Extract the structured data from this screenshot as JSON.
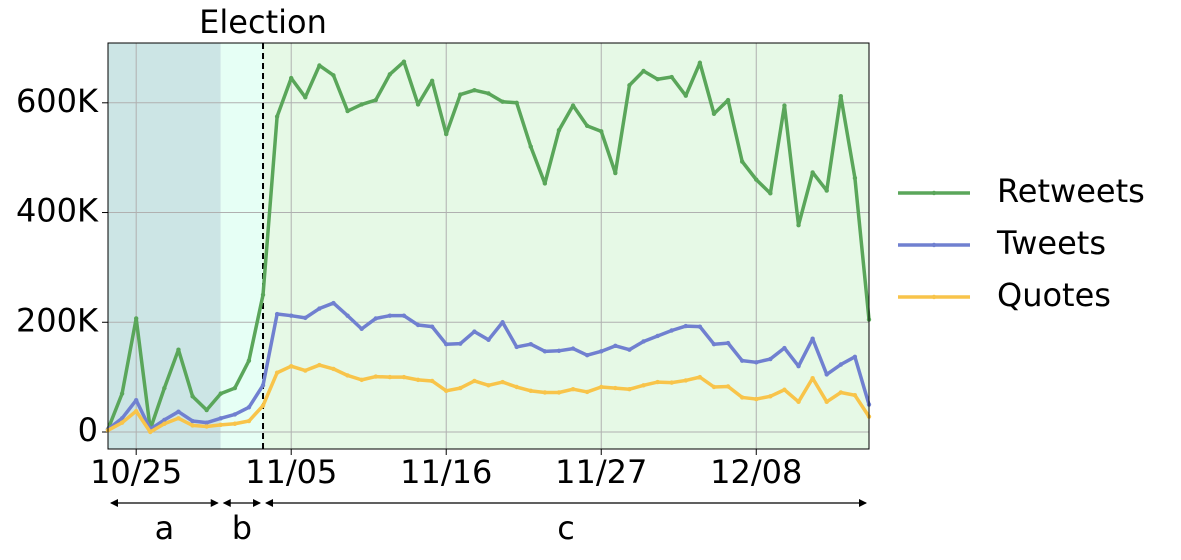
{
  "chart_data": {
    "type": "line",
    "x": [
      "10/23",
      "10/24",
      "10/25",
      "10/26",
      "10/27",
      "10/28",
      "10/29",
      "10/30",
      "10/31",
      "11/01",
      "11/02",
      "11/03",
      "11/04",
      "11/05",
      "11/06",
      "11/07",
      "11/08",
      "11/09",
      "11/10",
      "11/11",
      "11/12",
      "11/13",
      "11/14",
      "11/15",
      "11/16",
      "11/17",
      "11/18",
      "11/19",
      "11/20",
      "11/21",
      "11/22",
      "11/23",
      "11/24",
      "11/25",
      "11/26",
      "11/27",
      "11/28",
      "11/29",
      "11/30",
      "12/01",
      "12/02",
      "12/03",
      "12/04",
      "12/05",
      "12/06",
      "12/07",
      "12/08",
      "12/09",
      "12/10",
      "12/11",
      "12/12",
      "12/13",
      "12/14",
      "12/15",
      "12/16"
    ],
    "series": [
      {
        "name": "Retweets",
        "color": "#5aa65a",
        "values": [
          5000,
          70000,
          207000,
          5000,
          80000,
          150000,
          65000,
          40000,
          70000,
          80000,
          130000,
          250000,
          575000,
          645000,
          610000,
          668000,
          650000,
          585000,
          597000,
          605000,
          652000,
          675000,
          597000,
          640000,
          543000,
          615000,
          623000,
          617000,
          602000,
          600000,
          520000,
          453000,
          550000,
          595000,
          558000,
          548000,
          472000,
          632000,
          658000,
          643000,
          647000,
          613000,
          673000,
          580000,
          605000,
          493000,
          460000,
          435000,
          595000,
          377000,
          473000,
          440000,
          612000,
          463000,
          205000
        ]
      },
      {
        "name": "Tweets",
        "color": "#7080d0",
        "values": [
          5000,
          25000,
          58000,
          5000,
          22000,
          37000,
          20000,
          17000,
          25000,
          32000,
          45000,
          85000,
          215000,
          212000,
          208000,
          225000,
          235000,
          212000,
          188000,
          207000,
          212000,
          212000,
          195000,
          192000,
          160000,
          161000,
          183000,
          168000,
          200000,
          155000,
          160000,
          147000,
          148000,
          152000,
          140000,
          147000,
          157000,
          150000,
          165000,
          175000,
          185000,
          193000,
          192000,
          160000,
          162000,
          130000,
          127000,
          133000,
          153000,
          120000,
          170000,
          105000,
          123000,
          137000,
          50000
        ]
      },
      {
        "name": "Quotes",
        "color": "#f8c44a",
        "values": [
          3000,
          17000,
          38000,
          0,
          15000,
          25000,
          12000,
          10000,
          13000,
          15000,
          20000,
          48000,
          108000,
          120000,
          112000,
          122000,
          115000,
          103000,
          95000,
          101000,
          100000,
          100000,
          95000,
          93000,
          75000,
          80000,
          93000,
          85000,
          91000,
          82000,
          75000,
          72000,
          72000,
          78000,
          73000,
          82000,
          80000,
          78000,
          85000,
          91000,
          90000,
          94000,
          100000,
          82000,
          83000,
          63000,
          60000,
          65000,
          77000,
          55000,
          98000,
          55000,
          72000,
          67000,
          28000
        ]
      }
    ],
    "xlim": [
      "10/23",
      "12/16"
    ],
    "xticks": [
      "10/25",
      "11/05",
      "11/16",
      "11/27",
      "12/08"
    ],
    "ylim": [
      -31000,
      709000
    ],
    "yticks": [
      0,
      {
        "value": 200000,
        "label": "200K"
      },
      {
        "value": 400000,
        "label": "400K"
      },
      {
        "value": 600000,
        "label": "600K"
      }
    ],
    "grid": true,
    "legend": "right",
    "phases": [
      {
        "label": "a",
        "start": "10/23",
        "end": "10/31",
        "color": "#cce5e5"
      },
      {
        "label": "b",
        "start": "10/31",
        "end": "11/03",
        "color": "#e6fff5"
      },
      {
        "label": "c",
        "start": "11/03",
        "end": "12/16",
        "color": "#e6f9e6"
      }
    ],
    "annotations": [
      {
        "text": "Election",
        "x": "11/03"
      }
    ]
  }
}
